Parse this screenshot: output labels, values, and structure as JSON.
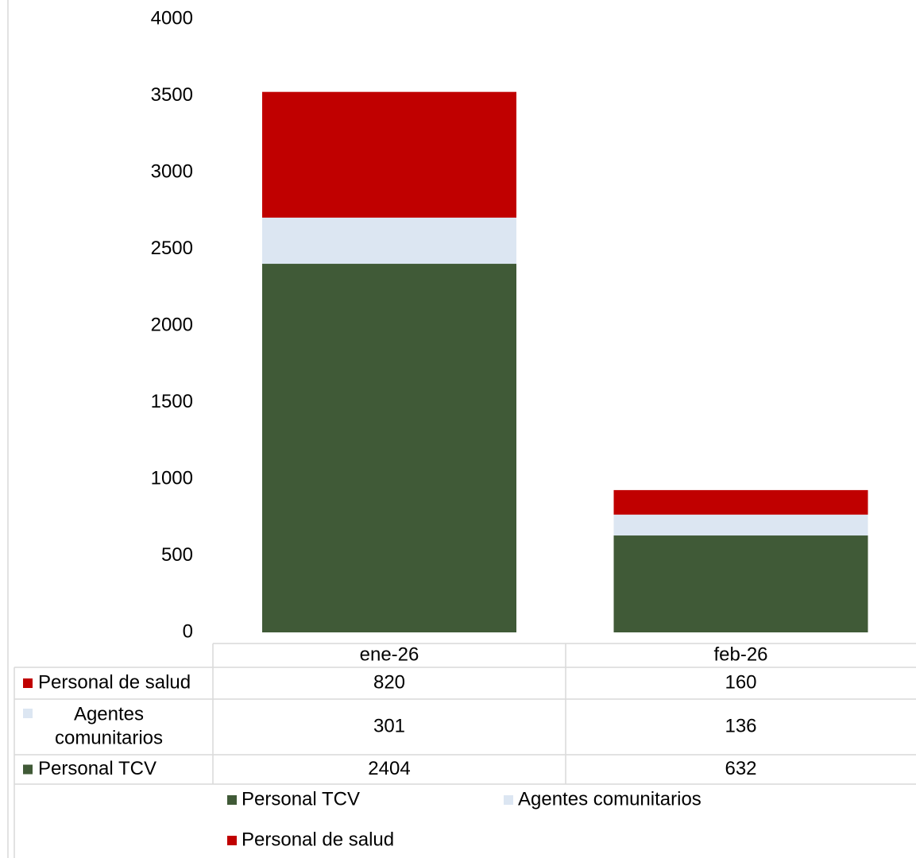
{
  "chart_data": {
    "type": "bar",
    "stacked": true,
    "categories": [
      "ene-26",
      "feb-26"
    ],
    "series": [
      {
        "name": "Personal TCV",
        "values": [
          2404,
          632
        ],
        "color": "#405a37"
      },
      {
        "name": "Agentes comunitarios",
        "values": [
          301,
          136
        ],
        "color": "#dce6f2"
      },
      {
        "name": "Personal de salud",
        "values": [
          820,
          160
        ],
        "color": "#c00000"
      }
    ],
    "ylim": [
      0,
      4000
    ],
    "yticks": [
      0,
      500,
      1000,
      1500,
      2000,
      2500,
      3000,
      3500,
      4000
    ],
    "grid": false,
    "data_table": {
      "rows": [
        {
          "label_lines": [
            "Personal de salud"
          ],
          "series": "Personal de salud",
          "values": [
            "820",
            "160"
          ]
        },
        {
          "label_lines": [
            "Agentes",
            "comunitarios"
          ],
          "series": "Agentes comunitarios",
          "values": [
            "301",
            "136"
          ]
        },
        {
          "label_lines": [
            "Personal TCV"
          ],
          "series": "Personal TCV",
          "values": [
            "2404",
            "632"
          ]
        }
      ]
    },
    "legend": {
      "position": "bottom",
      "entries": [
        "Personal TCV",
        "Agentes comunitarios",
        "Personal de salud"
      ]
    }
  }
}
